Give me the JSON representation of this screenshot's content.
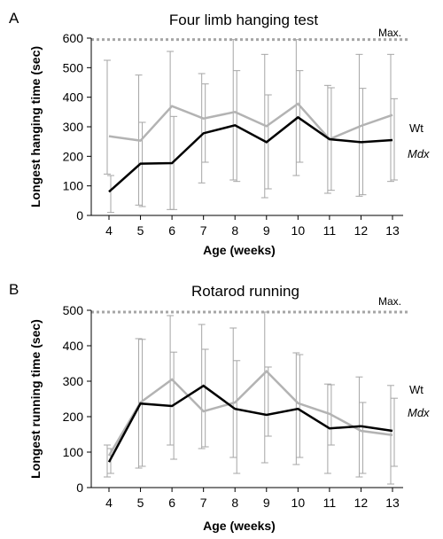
{
  "colors": {
    "wt": "#b3b3b3",
    "mdx": "#000000",
    "axis": "#000000",
    "max_line": "#a6a6a6",
    "error_bar": "#a6a6a6"
  },
  "chart_data": [
    {
      "type": "line",
      "panel": "A",
      "title": "Four limb hanging test",
      "xlabel": "Age (weeks)",
      "ylabel": "Longest hanging time (sec)",
      "categories": [
        "4",
        "5",
        "6",
        "7",
        "8",
        "9",
        "10",
        "11",
        "12",
        "13"
      ],
      "ylim": [
        0,
        600
      ],
      "yticks": [
        0,
        100,
        200,
        300,
        400,
        500,
        600
      ],
      "max_value": 595,
      "max_label": "Max.",
      "series": [
        {
          "name": "Wt",
          "key": "wt",
          "italic": false,
          "values": [
            268,
            253,
            370,
            328,
            350,
            302,
            378,
            258,
            303,
            340
          ],
          "err_low": [
            140,
            35,
            20,
            110,
            120,
            60,
            135,
            75,
            65,
            115
          ],
          "err_high": [
            525,
            475,
            555,
            480,
            595,
            545,
            595,
            440,
            545,
            545
          ]
        },
        {
          "name": "Mdx",
          "key": "mdx",
          "italic": true,
          "values": [
            80,
            175,
            177,
            278,
            305,
            248,
            332,
            258,
            248,
            255
          ],
          "err_low": [
            10,
            30,
            20,
            180,
            115,
            90,
            180,
            85,
            70,
            120
          ],
          "err_high": [
            135,
            315,
            335,
            445,
            490,
            408,
            490,
            432,
            430,
            395
          ]
        }
      ]
    },
    {
      "type": "line",
      "panel": "B",
      "title": "Rotarod running",
      "xlabel": "Age (weeks)",
      "ylabel": "Longest running time (sec)",
      "categories": [
        "4",
        "5",
        "6",
        "7",
        "8",
        "9",
        "10",
        "11",
        "12",
        "13"
      ],
      "ylim": [
        0,
        500
      ],
      "yticks": [
        0,
        100,
        200,
        300,
        400,
        500
      ],
      "max_value": 495,
      "max_label": "Max.",
      "series": [
        {
          "name": "Wt",
          "key": "wt",
          "italic": false,
          "values": [
            90,
            240,
            305,
            215,
            240,
            328,
            238,
            208,
            160,
            148
          ],
          "err_low": [
            30,
            55,
            120,
            110,
            85,
            70,
            65,
            40,
            30,
            10
          ],
          "err_high": [
            120,
            420,
            485,
            460,
            450,
            495,
            380,
            292,
            312,
            288
          ]
        },
        {
          "name": "Mdx",
          "key": "mdx",
          "italic": false,
          "values": [
            72,
            237,
            230,
            287,
            222,
            205,
            222,
            167,
            173,
            160
          ],
          "err_low": [
            40,
            60,
            80,
            115,
            40,
            145,
            85,
            120,
            40,
            60
          ],
          "err_high": [
            110,
            418,
            382,
            390,
            358,
            340,
            375,
            290,
            240,
            252
          ]
        }
      ]
    }
  ],
  "panels": [
    {
      "letter": "A",
      "title": "Four limb hanging test",
      "ylabel": "Longest hanging time (sec)",
      "xlabel": "Age (weeks)",
      "max_label": "Max.",
      "legend_wt": "Wt",
      "legend_mdx": "Mdx"
    },
    {
      "letter": "B",
      "title": "Rotarod running",
      "ylabel": "Longest running time (sec)",
      "xlabel": "Age (weeks)",
      "max_label": "Max.",
      "legend_wt": "Wt",
      "legend_mdx": "Mdx"
    }
  ]
}
